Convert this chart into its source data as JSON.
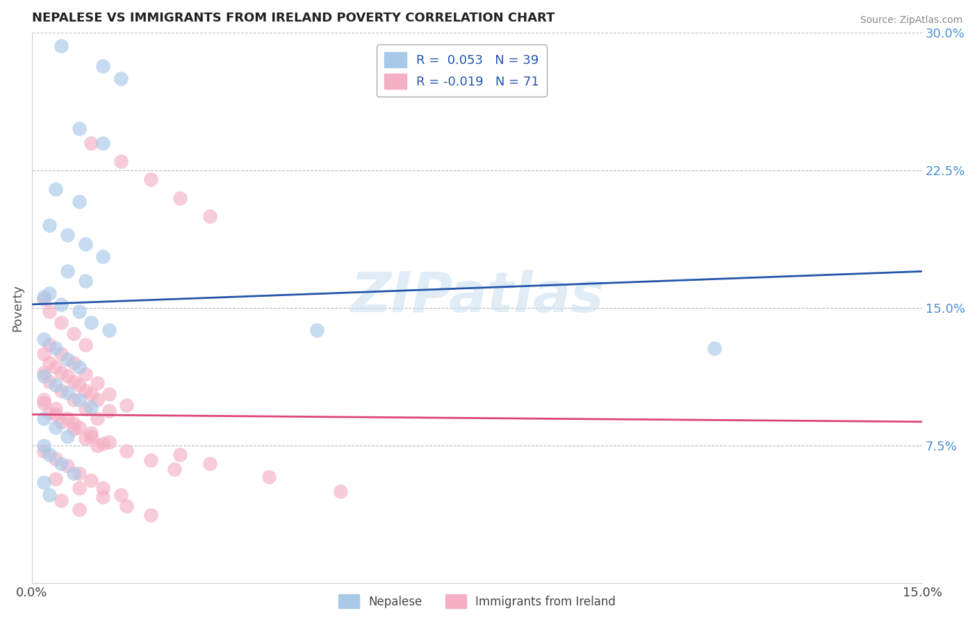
{
  "title": "NEPALESE VS IMMIGRANTS FROM IRELAND POVERTY CORRELATION CHART",
  "source": "Source: ZipAtlas.com",
  "ylabel": "Poverty",
  "xlim": [
    0.0,
    0.15
  ],
  "ylim": [
    0.0,
    0.3
  ],
  "yticks_right": [
    0.075,
    0.15,
    0.225,
    0.3
  ],
  "ytick_labels_right": [
    "7.5%",
    "15.0%",
    "22.5%",
    "30.0%"
  ],
  "blue_color": "#a8c8e8",
  "pink_color": "#f4afc4",
  "blue_line_color": "#2255aa",
  "pink_line_color": "#dd4477",
  "blue_line_dash": false,
  "pink_line_dash": false,
  "background_color": "#ffffff",
  "grid_color": "#bbbbbb",
  "legend_text_1": "R =  0.053   N = 39",
  "legend_text_2": "R = -0.019   N = 71",
  "legend_label_blue": "Nepalese",
  "legend_label_pink": "Immigrants from Ireland",
  "watermark": "ZIPatlas",
  "title_fontsize": 13,
  "blue_scatter_x": [
    0.005,
    0.012,
    0.015,
    0.008,
    0.012,
    0.004,
    0.008,
    0.003,
    0.006,
    0.009,
    0.012,
    0.006,
    0.009,
    0.003,
    0.005,
    0.008,
    0.01,
    0.013,
    0.002,
    0.004,
    0.006,
    0.008,
    0.002,
    0.004,
    0.006,
    0.008,
    0.01,
    0.002,
    0.004,
    0.006,
    0.002,
    0.003,
    0.005,
    0.007,
    0.002,
    0.003,
    0.048,
    0.115,
    0.002
  ],
  "blue_scatter_y": [
    0.293,
    0.282,
    0.275,
    0.248,
    0.24,
    0.215,
    0.208,
    0.195,
    0.19,
    0.185,
    0.178,
    0.17,
    0.165,
    0.158,
    0.152,
    0.148,
    0.142,
    0.138,
    0.133,
    0.128,
    0.122,
    0.118,
    0.113,
    0.108,
    0.104,
    0.1,
    0.096,
    0.09,
    0.085,
    0.08,
    0.075,
    0.07,
    0.065,
    0.06,
    0.055,
    0.048,
    0.138,
    0.128,
    0.156
  ],
  "pink_scatter_x": [
    0.002,
    0.003,
    0.005,
    0.007,
    0.009,
    0.002,
    0.004,
    0.006,
    0.008,
    0.01,
    0.002,
    0.003,
    0.005,
    0.007,
    0.009,
    0.011,
    0.002,
    0.004,
    0.006,
    0.008,
    0.01,
    0.012,
    0.002,
    0.003,
    0.005,
    0.007,
    0.009,
    0.011,
    0.002,
    0.004,
    0.006,
    0.008,
    0.01,
    0.012,
    0.015,
    0.003,
    0.005,
    0.007,
    0.009,
    0.011,
    0.013,
    0.003,
    0.005,
    0.007,
    0.009,
    0.011,
    0.013,
    0.016,
    0.004,
    0.007,
    0.01,
    0.013,
    0.016,
    0.02,
    0.024,
    0.004,
    0.008,
    0.012,
    0.016,
    0.02,
    0.025,
    0.03,
    0.04,
    0.01,
    0.015,
    0.02,
    0.025,
    0.03,
    0.005,
    0.008,
    0.052
  ],
  "pink_scatter_y": [
    0.155,
    0.148,
    0.142,
    0.136,
    0.13,
    0.125,
    0.118,
    0.113,
    0.108,
    0.103,
    0.098,
    0.093,
    0.088,
    0.084,
    0.079,
    0.075,
    0.1,
    0.095,
    0.09,
    0.085,
    0.08,
    0.076,
    0.115,
    0.11,
    0.105,
    0.1,
    0.095,
    0.09,
    0.072,
    0.068,
    0.064,
    0.06,
    0.056,
    0.052,
    0.048,
    0.12,
    0.115,
    0.11,
    0.105,
    0.1,
    0.094,
    0.13,
    0.125,
    0.12,
    0.114,
    0.109,
    0.103,
    0.097,
    0.092,
    0.087,
    0.082,
    0.077,
    0.072,
    0.067,
    0.062,
    0.057,
    0.052,
    0.047,
    0.042,
    0.037,
    0.07,
    0.065,
    0.058,
    0.24,
    0.23,
    0.22,
    0.21,
    0.2,
    0.045,
    0.04,
    0.05
  ]
}
